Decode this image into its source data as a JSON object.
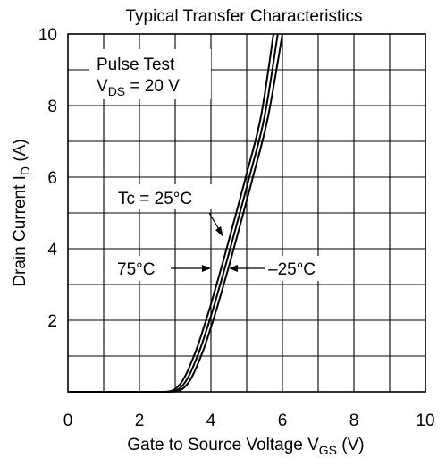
{
  "chart_data": {
    "type": "line",
    "title": "Typical Transfer Characteristics",
    "xlabel": {
      "main": "Gate to Source Voltage  V",
      "sub": "GS",
      "unit": "  (V)"
    },
    "ylabel": {
      "main": "Drain Current  I",
      "sub": "D",
      "unit": "  (A)"
    },
    "xlim": [
      0,
      10
    ],
    "ylim": [
      0,
      10
    ],
    "x_ticks": [
      "0",
      "2",
      "4",
      "6",
      "8",
      "10"
    ],
    "y_ticks": [
      "2",
      "4",
      "6",
      "8",
      "10"
    ],
    "grid": true,
    "grid_step": {
      "x": 1,
      "y": 1
    },
    "annotations": {
      "pulse_test": "Pulse Test",
      "vds_main": "V",
      "vds_sub": "DS",
      "vds_value": " = 20 V",
      "tc": "Tc = 25°C",
      "t75": "75°C",
      "tm25": "–25°C"
    },
    "series": [
      {
        "name": "75°C",
        "x": [
          0,
          2.5,
          2.8,
          2.9,
          3.0,
          3.1,
          3.2,
          3.3,
          3.4,
          3.6,
          3.8,
          4.0,
          4.3,
          4.6,
          5.0,
          5.4,
          5.75
        ],
        "y": [
          0,
          0,
          0.01,
          0.03,
          0.08,
          0.17,
          0.3,
          0.48,
          0.7,
          1.2,
          1.8,
          2.45,
          3.5,
          4.6,
          6.1,
          7.7,
          10.0
        ]
      },
      {
        "name": "Tc = 25°C",
        "x": [
          0,
          2.5,
          2.9,
          3.0,
          3.1,
          3.2,
          3.3,
          3.4,
          3.5,
          3.7,
          3.9,
          4.1,
          4.4,
          4.7,
          5.1,
          5.5,
          5.87
        ],
        "y": [
          0,
          0,
          0.01,
          0.03,
          0.08,
          0.17,
          0.3,
          0.48,
          0.7,
          1.2,
          1.8,
          2.45,
          3.5,
          4.6,
          6.1,
          7.7,
          10.0
        ]
      },
      {
        "name": "–25°C",
        "x": [
          0,
          2.6,
          3.0,
          3.1,
          3.2,
          3.3,
          3.4,
          3.5,
          3.6,
          3.8,
          4.0,
          4.2,
          4.5,
          4.8,
          5.2,
          5.6,
          6.0
        ],
        "y": [
          0,
          0,
          0.01,
          0.03,
          0.08,
          0.17,
          0.3,
          0.48,
          0.7,
          1.2,
          1.8,
          2.45,
          3.5,
          4.6,
          6.1,
          7.7,
          10.0
        ]
      }
    ]
  }
}
